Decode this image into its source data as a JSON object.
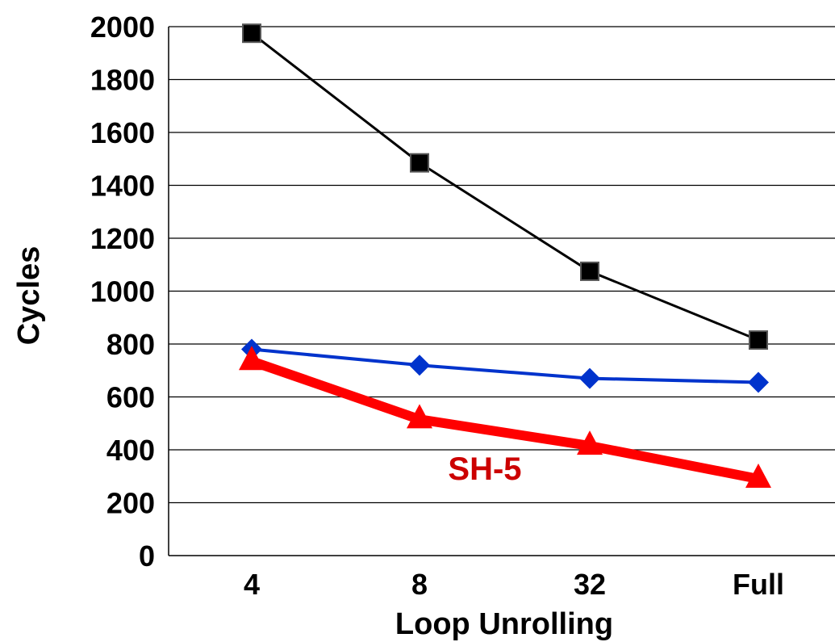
{
  "chart_data": {
    "type": "line",
    "categories": [
      "4",
      "8",
      "32",
      "Full"
    ],
    "xlabel": "Loop Unrolling",
    "ylabel": "Cycles",
    "ylim": [
      0,
      2000
    ],
    "yticks": [
      "0",
      "200",
      "400",
      "600",
      "800",
      "1000",
      "1200",
      "1400",
      "1600",
      "1800",
      "2000"
    ],
    "grid": true,
    "series": [
      {
        "values": [
          1975,
          1485,
          1075,
          815
        ],
        "color": "#000000",
        "marker": "square"
      },
      {
        "values": [
          780,
          720,
          670,
          655
        ],
        "color": "#0033cc",
        "marker": "diamond"
      },
      {
        "name": "SH-5",
        "values": [
          735,
          515,
          415,
          290
        ],
        "color": "#ff0000",
        "marker": "triangle"
      }
    ],
    "annotations": [
      {
        "text": "SH-5",
        "color": "#cc0000"
      }
    ]
  }
}
